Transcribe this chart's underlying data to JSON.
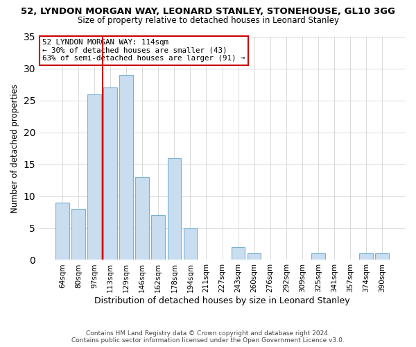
{
  "title": "52, LYNDON MORGAN WAY, LEONARD STANLEY, STONEHOUSE, GL10 3GG",
  "subtitle": "Size of property relative to detached houses in Leonard Stanley",
  "xlabel": "Distribution of detached houses by size in Leonard Stanley",
  "ylabel": "Number of detached properties",
  "footer_line1": "Contains HM Land Registry data © Crown copyright and database right 2024.",
  "footer_line2": "Contains public sector information licensed under the Open Government Licence v3.0.",
  "annotation_line1": "52 LYNDON MORGAN WAY: 114sqm",
  "annotation_line2": "← 30% of detached houses are smaller (43)",
  "annotation_line3": "63% of semi-detached houses are larger (91) →",
  "bar_labels": [
    "64sqm",
    "80sqm",
    "97sqm",
    "113sqm",
    "129sqm",
    "146sqm",
    "162sqm",
    "178sqm",
    "194sqm",
    "211sqm",
    "227sqm",
    "243sqm",
    "260sqm",
    "276sqm",
    "292sqm",
    "309sqm",
    "325sqm",
    "341sqm",
    "357sqm",
    "374sqm",
    "390sqm"
  ],
  "bar_heights": [
    9,
    8,
    26,
    27,
    29,
    13,
    7,
    16,
    5,
    0,
    0,
    2,
    1,
    0,
    0,
    0,
    1,
    0,
    0,
    1,
    1
  ],
  "bar_color": "#c8ddf0",
  "bar_edge_color": "#7ab0d4",
  "vline_color": "#cc0000",
  "vline_position": 2.5,
  "ylim": [
    0,
    35
  ],
  "yticks": [
    0,
    5,
    10,
    15,
    20,
    25,
    30,
    35
  ],
  "background_color": "#ffffff",
  "annotation_box_edge": "#cc0000",
  "title_fontsize": 9.5,
  "subtitle_fontsize": 8.5,
  "xlabel_fontsize": 9,
  "ylabel_fontsize": 8.5,
  "tick_fontsize": 7.5,
  "footer_fontsize": 6.5
}
